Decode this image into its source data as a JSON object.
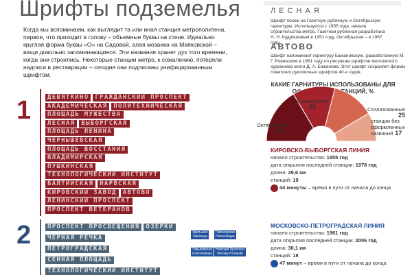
{
  "header": {
    "title": "Шрифты подземелья",
    "intro": "Когда мы вспоминаем, как выглядит та или иная станция метрополитена, первое, что приходит в голову – объемные буквы на стене. Идеально круглая форма буквы «О» на Садовой, алая мозаика на Маяковской – вещи довольно запоминающиеся. Эти названия хранят дух того времени, когда они строились. Некоторые станции метро, к сожалению, потеряли надписи в реставрации – сегодня они подписаны унифицированным шрифтом."
  },
  "specimens": [
    {
      "number": "1",
      "rows": [
        [
          "ДЕВЯТКИНО",
          "ГРАЖДАНСКИЙ ПРОСПЕКТ"
        ],
        [
          "АКАДЕМИЧЕСКАЯ",
          "ПОЛИТЕХНИЧЕСКАЯ"
        ],
        [
          "ПЛОЩАДЬ МУЖЕСТВА"
        ],
        [
          "ЛЕСНАЯ",
          "ВЫБОРГСКАЯ"
        ],
        [
          "ПЛОЩАДЬ ЛЕНИНА"
        ],
        [
          "ЧЕРНЫШЕВСКАЯ"
        ],
        [
          "ПЛОЩАДЬ ВОССТАНИЯ"
        ],
        [
          "ВЛАДИМИРСКАЯ"
        ],
        [
          "ПУШКИНСКАЯ"
        ],
        [
          "ТЕХНОЛОГИЧЕСКИЙ ИНСТИТУТ"
        ],
        [
          "БАЛТИЙСКАЯ",
          "НАРВСКАЯ"
        ],
        [
          "КИРОВСКИЙ ЗАВОД",
          "АВТОВО"
        ],
        [
          "ЛЕНИНСКИЙ ПРОСПЕКТ"
        ],
        [
          "ПРОСПЕКТ ВЕТЕРАНОВ"
        ]
      ]
    },
    {
      "number": "2",
      "rows": [
        [
          "ПРОСПЕКТ ПРОСВЕЩЕНИЯ",
          "ОЗЕРКИ"
        ],
        [
          "ЧЕРНАЯ РЕЧКА"
        ],
        [
          "ПЕТРОГРАДСКАЯ"
        ],
        [
          "СЕННАЯ ПЛОЩАДЬ"
        ],
        [
          "ТЕХНОЛОГИЧЕСКИЙ ИНСТИТУТ"
        ]
      ],
      "signs": [
        [
          "Удельная",
          "Udelnaya"
        ],
        [
          "Пионерская",
          "Pionerskaya"
        ],
        [
          "Горьковская",
          "Gorkovskaya"
        ],
        [
          "Невский Проспект",
          "Nevsky Prospekt"
        ]
      ]
    }
  ],
  "fonts": [
    {
      "name": "ЛЕСНАЯ",
      "text": "Шрифт похож на Газетную рубленую и Октябрьскую гарнитуры. Используется с 1955 года, начала строительства метро. Газетная рубленая разработана Н. Н. Кудряшовым в 1951 году, Октябрьская – в 1967 году."
    },
    {
      "name": "АВТОВО",
      "text": "Шрифт напоминает гарнитуру Бажановскую, разработанную М. Г. Ровенским в 1961 году по рисункам шрифтов московского художника книги Д. А. Бажанова. Этот шрифт сохраняет формы советских рукописных шрифтов 40-х годов."
    }
  ],
  "chart_data": {
    "type": "pie",
    "half": true,
    "title": "КАКИЕ ГАРНИТУРЫ ИСПОЛЬЗОВАНЫ ДЛЯ ОФОРМЛЕНИЯ СТАНЦИЙ, %",
    "categories": [
      "Октябрьская",
      "Бажановская",
      "Стилизованные",
      "станции без оформленных названий"
    ],
    "values": [
      33,
      25,
      25,
      17
    ],
    "colors": [
      "#6b1018",
      "#a3222b",
      "#d4664f",
      "#e8a48b"
    ]
  },
  "metro_lines": [
    {
      "name": "КИРОВСКО-ВЫБОРГСКАЯ ЛИНИЯ",
      "facts": [
        {
          "label": "начало строительства:",
          "value": "1955 год"
        },
        {
          "label": "дата открытия последней станции:",
          "value": "1978 год"
        },
        {
          "label": "длина:",
          "value": "29,6 км"
        },
        {
          "label": "станций:",
          "value": "19"
        }
      ],
      "time": {
        "value": "44 минуты",
        "label": "– время в пути от начала до конца"
      }
    },
    {
      "name": "МОСКОВСКО-ПЕТРОГРАДСКАЯ ЛИНИЯ",
      "facts": [
        {
          "label": "начало строительства:",
          "value": "1961 год"
        },
        {
          "label": "дата открытия последней станции:",
          "value": "2006 год"
        },
        {
          "label": "длина:",
          "value": "30,1 км"
        },
        {
          "label": "станций:",
          "value": "18"
        }
      ],
      "time": {
        "value": "47 минут",
        "label": "– время в пути от начала до конца"
      }
    }
  ]
}
